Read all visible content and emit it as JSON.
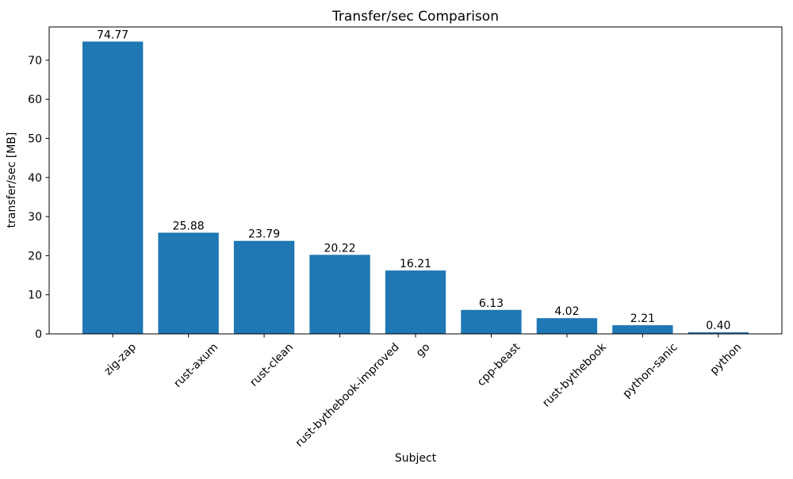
{
  "chart_data": {
    "type": "bar",
    "title": "Transfer/sec Comparison",
    "xlabel": "Subject",
    "ylabel": "transfer/sec [MB]",
    "categories": [
      "zig-zap",
      "rust-axum",
      "rust-clean",
      "rust-bythebook-improved",
      "go",
      "cpp-beast",
      "rust-bythebook",
      "python-sanic",
      "python"
    ],
    "values": [
      74.77,
      25.88,
      23.79,
      20.22,
      16.21,
      6.13,
      4.02,
      2.21,
      0.4
    ],
    "value_labels": [
      "74.77",
      "25.88",
      "23.79",
      "20.22",
      "16.21",
      "6.13",
      "4.02",
      "2.21",
      "0.40"
    ],
    "yticks": [
      0,
      10,
      20,
      30,
      40,
      50,
      60,
      70
    ],
    "ylim": [
      0,
      78.5
    ],
    "xtick_rotation": 45,
    "grid": false,
    "legend": null,
    "bar_color": "#1f77b4",
    "spine_color": "#000000",
    "text_color": "#000000",
    "background_color": "#ffffff"
  }
}
